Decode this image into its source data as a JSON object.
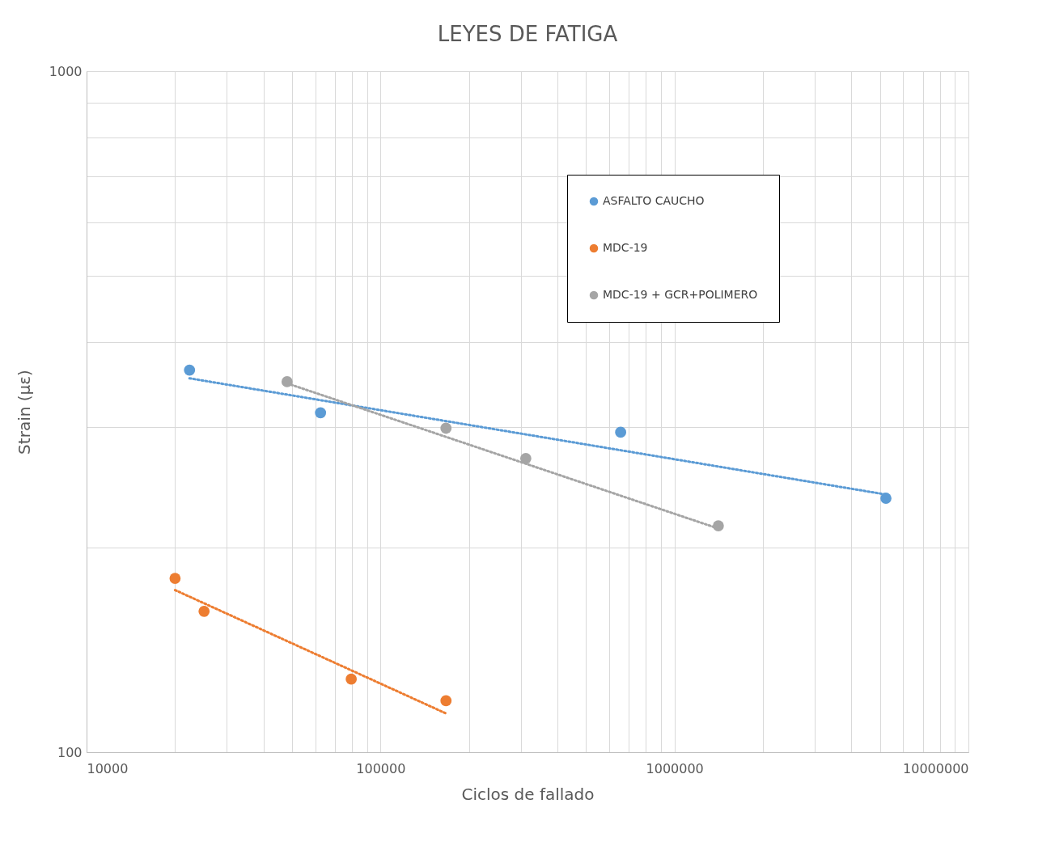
{
  "chart_data": {
    "type": "scatter",
    "title": "LEYES DE FATIGA",
    "xlabel": "Ciclos de fallado",
    "ylabel": "Strain (με)",
    "log": "xy",
    "grid": true,
    "legend": "top right",
    "marker": "circle",
    "xlim": [
      10000,
      10000000
    ],
    "ylim": [
      100,
      1000
    ],
    "xticks": [
      10000,
      {
        "value": 20000,
        "label": null
      },
      {
        "value": 30000,
        "label": null
      },
      {
        "value": 40000,
        "label": null
      },
      {
        "value": 50000,
        "label": null
      },
      {
        "value": 60000,
        "label": null
      },
      {
        "value": 70000,
        "label": null
      },
      {
        "value": 80000,
        "label": null
      },
      {
        "value": 90000,
        "label": null
      },
      100000,
      {
        "value": 200000,
        "label": null
      },
      {
        "value": 300000,
        "label": null
      },
      {
        "value": 400000,
        "label": null
      },
      {
        "value": 500000,
        "label": null
      },
      {
        "value": 600000,
        "label": null
      },
      {
        "value": 700000,
        "label": null
      },
      {
        "value": 800000,
        "label": null
      },
      {
        "value": 900000,
        "label": null
      },
      1000000,
      {
        "value": 2000000,
        "label": null
      },
      {
        "value": 3000000,
        "label": null
      },
      {
        "value": 4000000,
        "label": null
      },
      {
        "value": 5000000,
        "label": null
      },
      {
        "value": 6000000,
        "label": null
      },
      {
        "value": 7000000,
        "label": null
      },
      {
        "value": 8000000,
        "label": null
      },
      {
        "value": 9000000,
        "label": null
      },
      10000000
    ],
    "yticks": [
      100,
      {
        "value": 200,
        "label": null
      },
      {
        "value": 300,
        "label": null
      },
      {
        "value": 400,
        "label": null
      },
      {
        "value": 500,
        "label": null
      },
      {
        "value": 600,
        "label": null
      },
      {
        "value": 700,
        "label": null
      },
      {
        "value": 800,
        "label": null
      },
      {
        "value": 900,
        "label": null
      },
      1000
    ],
    "series": [
      {
        "name": "ASFALTO CAUCHO",
        "color": "#5b9bd5",
        "x": [
          22400,
          62500,
          656000,
          5240000
        ],
        "values": [
          364,
          315,
          295,
          236
        ]
      },
      {
        "name": "MDC-19",
        "color": "#ed7d31",
        "x": [
          20000,
          25100,
          79500,
          167000
        ],
        "values": [
          180,
          161,
          128,
          119
        ]
      },
      {
        "name": "MDC-19 + GCR+POLIMERO",
        "color": "#a5a5a5",
        "x": [
          48100,
          167000,
          312000,
          1410000
        ],
        "values": [
          350,
          299,
          270,
          215
        ]
      },
      {
        "type": "line",
        "marker": "none",
        "line_style": "dotted",
        "color": "#5b9bd5",
        "x": [
          22400,
          5240000
        ],
        "values": [
          354,
          239
        ]
      },
      {
        "type": "line",
        "marker": "none",
        "line_style": "dotted",
        "color": "#ed7d31",
        "x": [
          20000,
          167000
        ],
        "values": [
          173,
          114
        ]
      },
      {
        "type": "line",
        "marker": "none",
        "line_style": "dotted",
        "color": "#a5a5a5",
        "x": [
          48100,
          1410000
        ],
        "values": [
          348,
          213
        ]
      }
    ]
  }
}
